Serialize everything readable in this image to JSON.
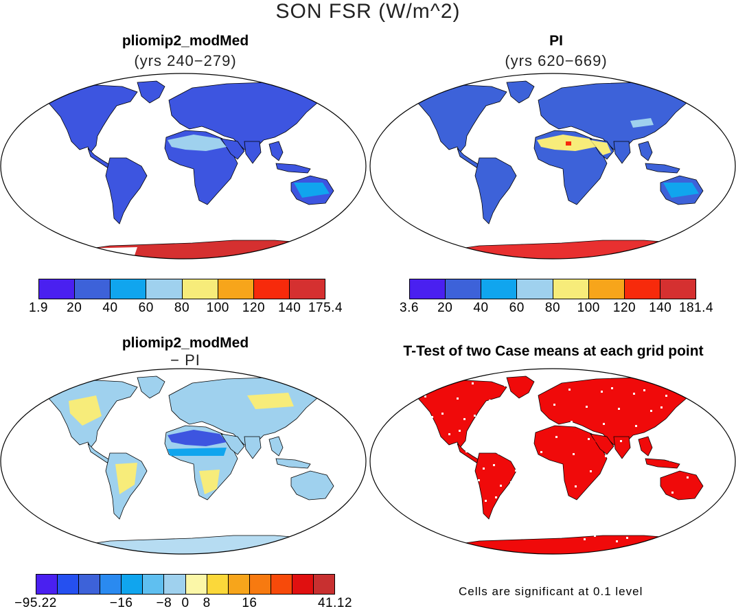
{
  "figure": {
    "title": "SON FSR (W/m^2)"
  },
  "panels": [
    {
      "title": "pliomip2_modMed",
      "subtitle": "(yrs 240−279)"
    },
    {
      "title": "PI",
      "subtitle": "(yrs 620−669)"
    },
    {
      "title": "pliomip2_modMed",
      "subtitle": "− PI"
    },
    {
      "title": "T-Test of two Case means at each grid point",
      "subtitle": ""
    }
  ],
  "colorbars": [
    {
      "name": "colorbar-pliomip2",
      "colors": [
        "#4a20f0",
        "#3d62d9",
        "#10a5ee",
        "#9fd1ee",
        "#f7ec7a",
        "#f7a51b",
        "#f72a0b",
        "#d53030"
      ],
      "ticks": [
        "1.9",
        "20",
        "40",
        "60",
        "80",
        "100",
        "120",
        "140",
        "175.4"
      ]
    },
    {
      "name": "colorbar-pi",
      "colors": [
        "#4a20f0",
        "#3d62d9",
        "#10a5ee",
        "#9fd1ee",
        "#f7ec7a",
        "#f7a51b",
        "#f72a0b",
        "#d53030"
      ],
      "ticks": [
        "3.6",
        "20",
        "40",
        "60",
        "80",
        "100",
        "120",
        "140",
        "181.4"
      ]
    },
    {
      "name": "colorbar-difference",
      "colors": [
        "#4a20f0",
        "#2550f0",
        "#3d62d9",
        "#2a8af0",
        "#10a5ee",
        "#5fbff0",
        "#9fd1ee",
        "#fbf7a8",
        "#fbd83a",
        "#f7a51b",
        "#f77a10",
        "#f74a0a",
        "#e01010",
        "#c83030"
      ],
      "ticks": [
        "−95.22",
        "−16",
        "−8",
        "0",
        "8",
        "16",
        "41.12"
      ]
    }
  ],
  "significance_note": "Cells are significant at 0.1 level",
  "map_fills": {
    "ocean": "#ffffff",
    "outline": "#000000",
    "p1_land": "#3d55e0",
    "p1_desert": "#9fd1ee",
    "p1_antarctica": "#d53030",
    "p2_land": "#3d62d9",
    "p2_desert": "#f7ec7a",
    "p2_antarctica": "#e83030",
    "p3_land": "#9fd1ee",
    "p3_warm": "#f7ec7a",
    "p3_sahara": "#3d55e0",
    "p3_antarctica": "#b6dcf2",
    "p4_land": "#f00a0a",
    "p4_antarctica": "#f00a0a"
  }
}
